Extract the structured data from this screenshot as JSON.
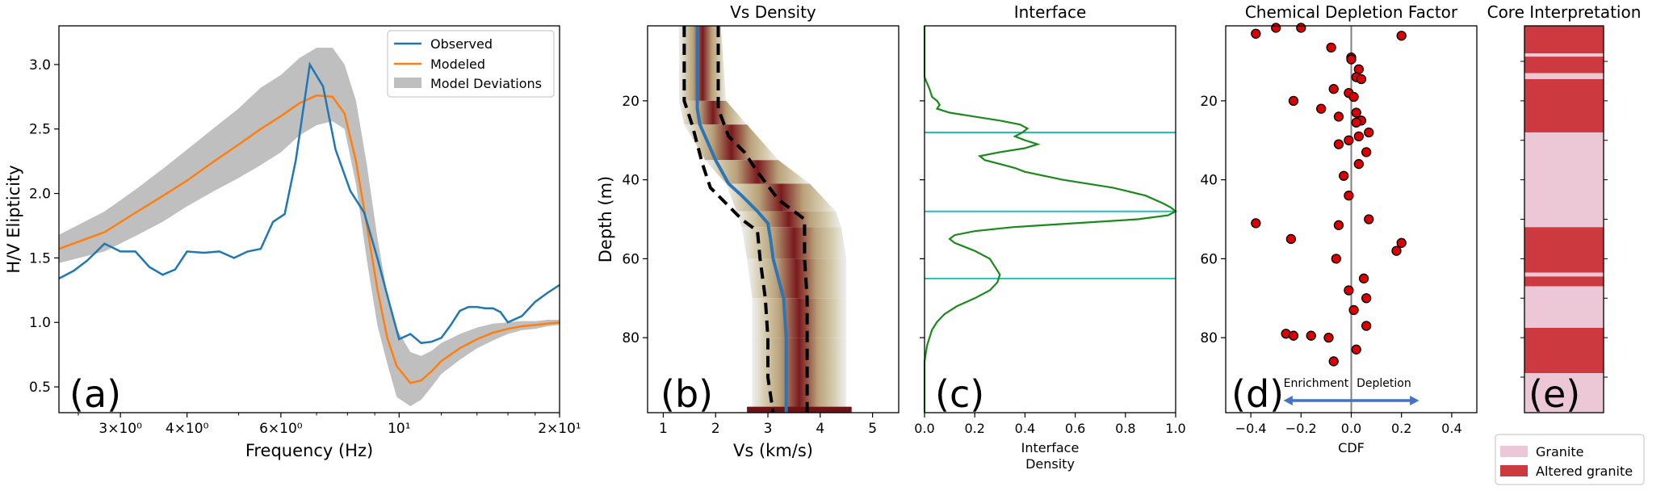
{
  "colors": {
    "observed": "#1f77b4",
    "modeled": "#ff7f0e",
    "band": "#bfbfbf",
    "vs_line": "#2e75b6",
    "interface_line": "#1a8a1a",
    "interface_hline": "#1fc0c0",
    "cdf_point": "#dd0000",
    "arrow": "#4472c4",
    "granite": "#ecc8d6",
    "altered": "#cc3a40"
  },
  "chart_data": [
    {
      "panel": "(a)",
      "type": "line",
      "title": "",
      "xlabel": "Frequency (Hz)",
      "ylabel": "H/V Elipticity",
      "xscale": "log",
      "xlim": [
        2.3,
        20
      ],
      "ylim": [
        0.3,
        3.3
      ],
      "xticks": [
        {
          "value": 3,
          "label": "3×10⁰"
        },
        {
          "value": 4,
          "label": "4×10⁰"
        },
        {
          "value": 6,
          "label": "6×10⁰"
        },
        {
          "value": 10,
          "label": "10¹"
        },
        {
          "value": 20,
          "label": "2×10¹"
        }
      ],
      "yticks": [
        0.5,
        1.0,
        1.5,
        2.0,
        2.5,
        3.0
      ],
      "ytick_labels": [
        "0.5",
        "1.0",
        "1.5",
        "2.0",
        "2.5",
        "3.0"
      ],
      "legend": [
        "Observed",
        "Modeled",
        "Model Deviations"
      ],
      "legend_position": "top-right",
      "series": [
        {
          "name": "Observed",
          "x": [
            2.3,
            2.45,
            2.6,
            2.8,
            3.0,
            3.2,
            3.4,
            3.6,
            3.8,
            4.0,
            4.3,
            4.6,
            4.9,
            5.2,
            5.5,
            5.8,
            6.1,
            6.4,
            6.8,
            7.2,
            7.6,
            8.1,
            8.6,
            9.1,
            9.6,
            10.0,
            10.5,
            11.0,
            11.5,
            12.0,
            12.5,
            13.0,
            13.5,
            14.0,
            14.5,
            15.0,
            15.5,
            16.0,
            17.0,
            18.0,
            19.0,
            20.0
          ],
          "y": [
            1.34,
            1.4,
            1.48,
            1.61,
            1.55,
            1.55,
            1.43,
            1.37,
            1.41,
            1.55,
            1.54,
            1.55,
            1.5,
            1.55,
            1.57,
            1.78,
            1.84,
            2.26,
            3.0,
            2.83,
            2.34,
            2.02,
            1.85,
            1.5,
            1.14,
            0.87,
            0.91,
            0.84,
            0.85,
            0.88,
            0.98,
            1.09,
            1.12,
            1.12,
            1.11,
            1.11,
            1.08,
            1.0,
            1.05,
            1.16,
            1.23,
            1.29
          ]
        },
        {
          "name": "Modeled",
          "x": [
            2.3,
            2.8,
            3.2,
            3.6,
            4.0,
            4.5,
            5.0,
            5.5,
            6.0,
            6.5,
            7.0,
            7.5,
            7.9,
            8.3,
            8.7,
            9.1,
            9.5,
            9.9,
            10.5,
            11.0,
            11.5,
            12.0,
            13.0,
            14.0,
            15.0,
            16.0,
            17.0,
            18.0,
            19.0,
            20.0
          ],
          "y": [
            1.57,
            1.7,
            1.85,
            1.98,
            2.1,
            2.25,
            2.38,
            2.5,
            2.6,
            2.7,
            2.76,
            2.75,
            2.62,
            2.25,
            1.75,
            1.26,
            0.88,
            0.66,
            0.53,
            0.55,
            0.62,
            0.7,
            0.8,
            0.87,
            0.92,
            0.95,
            0.97,
            0.98,
            0.99,
            1.0
          ]
        },
        {
          "name": "Model Deviations",
          "x": [
            2.3,
            2.8,
            3.2,
            3.6,
            4.0,
            4.5,
            5.0,
            5.5,
            6.0,
            6.5,
            7.0,
            7.5,
            7.9,
            8.3,
            8.7,
            9.1,
            9.5,
            9.9,
            10.5,
            11.0,
            11.5,
            12.0,
            13.0,
            14.0,
            15.0,
            16.0,
            17.0,
            18.0,
            19.0,
            20.0
          ],
          "upper": [
            1.68,
            1.86,
            2.03,
            2.19,
            2.34,
            2.51,
            2.66,
            2.82,
            2.92,
            3.05,
            3.13,
            3.13,
            3.0,
            2.72,
            2.22,
            1.66,
            1.22,
            0.95,
            0.77,
            0.74,
            0.78,
            0.84,
            0.91,
            0.96,
            0.99,
            1.0,
            1.01,
            1.01,
            1.02,
            1.02
          ],
          "lower": [
            1.46,
            1.55,
            1.67,
            1.78,
            1.9,
            2.02,
            2.12,
            2.22,
            2.32,
            2.45,
            2.53,
            2.56,
            2.5,
            2.07,
            1.48,
            0.98,
            0.68,
            0.42,
            0.35,
            0.4,
            0.5,
            0.6,
            0.71,
            0.8,
            0.86,
            0.91,
            0.94,
            0.95,
            0.97,
            0.98
          ]
        }
      ]
    },
    {
      "panel": "(b)",
      "type": "line",
      "title": "Vs Density",
      "xlabel": "Vs (km/s)",
      "ylabel": "Depth (m)",
      "xlim": [
        0.7,
        5.5
      ],
      "ylim": [
        99,
        1
      ],
      "xticks": [
        1,
        2,
        3,
        4,
        5
      ],
      "xtick_labels": [
        "1",
        "2",
        "3",
        "4",
        "5"
      ],
      "yticks": [
        20,
        40,
        60,
        80
      ],
      "ytick_labels": [
        "20",
        "40",
        "60",
        "80"
      ],
      "density_profile": {
        "depth": [
          1,
          20,
          26,
          35,
          41,
          48,
          52,
          60,
          70,
          80,
          90,
          99
        ],
        "left": [
          1.3,
          1.3,
          1.4,
          1.8,
          2.2,
          2.4,
          2.5,
          2.6,
          2.7,
          2.7,
          2.7,
          2.7
        ],
        "right": [
          2.1,
          2.2,
          2.6,
          3.2,
          3.8,
          4.3,
          4.4,
          4.5,
          4.5,
          4.5,
          4.5,
          4.5
        ]
      },
      "series": [
        {
          "name": "",
          "role": "median",
          "depth": [
            1,
            22,
            26,
            35,
            41,
            44,
            48,
            51,
            55,
            60,
            70,
            80,
            90,
            99
          ],
          "vs": [
            1.65,
            1.65,
            1.7,
            2.0,
            2.25,
            2.5,
            2.8,
            3.0,
            3.05,
            3.1,
            3.3,
            3.35,
            3.35,
            3.35
          ]
        },
        {
          "name": "",
          "role": "lower bound",
          "depth": [
            1,
            20,
            26,
            36,
            42,
            46,
            50,
            53,
            60,
            70,
            80,
            90,
            99
          ],
          "vs": [
            1.4,
            1.4,
            1.55,
            1.75,
            1.9,
            2.2,
            2.5,
            2.8,
            2.85,
            2.95,
            3.0,
            3.0,
            3.1
          ]
        },
        {
          "name": "",
          "role": "upper bound",
          "depth": [
            1,
            17,
            22,
            29,
            33,
            38,
            45,
            50,
            54,
            60,
            70,
            80,
            90,
            99
          ],
          "vs": [
            2.05,
            2.05,
            2.05,
            2.25,
            2.55,
            2.8,
            3.2,
            3.7,
            3.7,
            3.7,
            3.75,
            3.75,
            3.75,
            3.75
          ]
        }
      ]
    },
    {
      "panel": "(c)",
      "type": "line",
      "title": "Interface",
      "xlabel": "Interface Density",
      "xlim": [
        0,
        1
      ],
      "ylim": [
        99,
        1
      ],
      "xticks": [
        0.0,
        0.2,
        0.4,
        0.6,
        0.8,
        1.0
      ],
      "xtick_labels": [
        "0.0",
        "0.2",
        "0.4",
        "0.6",
        "0.8",
        "1.0"
      ],
      "interfaces_depth": [
        28,
        48,
        65
      ],
      "series": [
        {
          "name": "",
          "depth": [
            1,
            14,
            17,
            19,
            20,
            21,
            22,
            23,
            24,
            25,
            26,
            27,
            28,
            29,
            30,
            31,
            32,
            33,
            34,
            35,
            36,
            37,
            38,
            40,
            42,
            44,
            46,
            47,
            48,
            49,
            50,
            51,
            52,
            53,
            54,
            55,
            56,
            57,
            58,
            60,
            62,
            64,
            66,
            68,
            70,
            72,
            74,
            76,
            78,
            80,
            82,
            86,
            99
          ],
          "density": [
            0.0,
            0.0,
            0.02,
            0.03,
            0.05,
            0.06,
            0.05,
            0.1,
            0.2,
            0.3,
            0.38,
            0.41,
            0.39,
            0.36,
            0.4,
            0.45,
            0.4,
            0.3,
            0.22,
            0.24,
            0.3,
            0.36,
            0.4,
            0.55,
            0.75,
            0.88,
            0.95,
            0.98,
            1.0,
            0.97,
            0.85,
            0.6,
            0.35,
            0.2,
            0.12,
            0.1,
            0.12,
            0.16,
            0.2,
            0.26,
            0.28,
            0.3,
            0.29,
            0.26,
            0.2,
            0.13,
            0.08,
            0.05,
            0.03,
            0.02,
            0.01,
            0.0,
            0.0
          ]
        }
      ]
    },
    {
      "panel": "(d)",
      "type": "scatter",
      "title": "Chemical Depletion Factor",
      "xlabel": "CDF",
      "xlim": [
        -0.5,
        0.5
      ],
      "ylim": [
        99,
        1
      ],
      "xticks": [
        -0.4,
        -0.2,
        0.0,
        0.2,
        0.4
      ],
      "xtick_labels": [
        "−0.4",
        "−0.2",
        "0.0",
        "0.2",
        "0.4"
      ],
      "yticks": [
        20,
        40,
        60,
        80
      ],
      "ytick_labels": [
        "20",
        "40",
        "60",
        "80"
      ],
      "annotations": {
        "left": "Enrichment",
        "right": "Depletion"
      },
      "series": [
        {
          "name": "",
          "x": [
            -0.38,
            0.2,
            -0.08,
            -0.3,
            -0.2,
            0.0,
            0.0,
            0.03,
            0.02,
            0.04,
            -0.07,
            -0.01,
            0.01,
            -0.23,
            -0.12,
            0.02,
            -0.05,
            0.04,
            0.02,
            0.07,
            0.03,
            -0.01,
            -0.05,
            0.06,
            0.03,
            -0.03,
            -0.01,
            0.07,
            -0.38,
            -0.05,
            -0.24,
            0.2,
            0.18,
            -0.06,
            0.05,
            -0.01,
            0.06,
            0.01,
            0.06,
            -0.26,
            -0.16,
            -0.23,
            -0.09,
            0.02,
            -0.07
          ],
          "y": [
            3,
            3.5,
            6.5,
            1.5,
            1.5,
            9,
            9.5,
            12,
            14,
            14.5,
            17,
            18,
            19,
            20,
            22,
            23,
            24,
            25,
            25.5,
            28,
            29,
            30,
            31,
            33,
            36,
            39,
            44,
            50,
            51,
            51.5,
            55,
            56,
            58,
            60,
            65,
            68,
            70,
            73,
            77,
            79,
            79.5,
            79.5,
            80,
            83,
            86
          ]
        }
      ]
    },
    {
      "panel": "(e)",
      "type": "bar",
      "title": "Core Interpretation",
      "ylim": [
        99,
        1
      ],
      "legend": [
        "Granite",
        "Altered granite"
      ],
      "segments": [
        {
          "from": 1,
          "to": 8,
          "class": "Altered granite"
        },
        {
          "from": 8,
          "to": 8.8,
          "class": "Granite"
        },
        {
          "from": 8.8,
          "to": 13,
          "class": "Altered granite"
        },
        {
          "from": 13,
          "to": 14.5,
          "class": "Granite"
        },
        {
          "from": 14.5,
          "to": 28,
          "class": "Altered granite"
        },
        {
          "from": 28,
          "to": 52,
          "class": "Granite"
        },
        {
          "from": 52,
          "to": 63.5,
          "class": "Altered granite"
        },
        {
          "from": 63.5,
          "to": 64.5,
          "class": "Granite"
        },
        {
          "from": 64.5,
          "to": 67,
          "class": "Altered granite"
        },
        {
          "from": 67,
          "to": 77.5,
          "class": "Granite"
        },
        {
          "from": 77.5,
          "to": 89,
          "class": "Altered granite"
        },
        {
          "from": 89,
          "to": 99,
          "class": "Granite"
        }
      ]
    }
  ]
}
